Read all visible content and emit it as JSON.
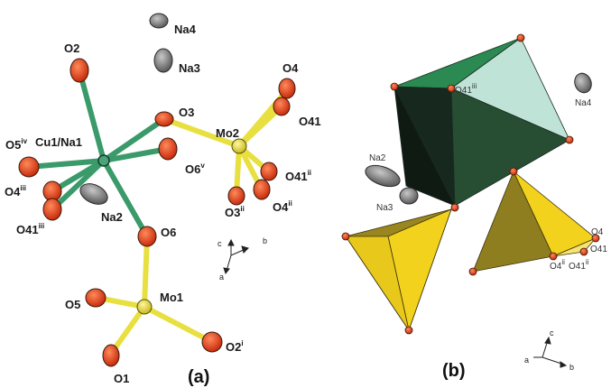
{
  "panel_a": {
    "label": "(a)",
    "atoms": {
      "o2": "O2",
      "na4": "Na4",
      "na3": "Na3",
      "o3": "O3",
      "mo2": "Mo2",
      "o4": "O4",
      "o41": "O41",
      "o5": "O5",
      "o5_sup": "iv",
      "cu1na1": "Cu1/Na1",
      "o6v": "O6",
      "o6v_sup": "v",
      "o4iii": "O4",
      "o4iii_sup": "iii",
      "o41iii": "O41",
      "o41iii_sup": "iii",
      "na2": "Na2",
      "o6": "O6",
      "o41ii": "O41",
      "o41ii_sup": "ii",
      "o4ii": "O4",
      "o4ii_sup": "ii",
      "o3ii": "O3",
      "o3ii_sup": "ii",
      "mo1": "Mo1",
      "o1": "O1",
      "o2i": "O2",
      "o2i_sup": "i"
    },
    "axes": {
      "c": "c",
      "b": "b",
      "a": "a"
    }
  },
  "panel_b": {
    "label": "(b)",
    "atoms": {
      "o41iii": "O41",
      "o41iii_sup": "iii",
      "na4": "Na4",
      "na2": "Na2",
      "na3": "Na3",
      "o4": "O4",
      "o41": "O41",
      "o4ii": "O4",
      "o4ii_sup": "ii",
      "o41ii": "O41",
      "o41ii_sup": "ii"
    },
    "axes": {
      "c": "c",
      "a": "a",
      "b": "b"
    }
  },
  "colors": {
    "oxygen": "#e8401c",
    "cu_bond": "#3a9a6a",
    "mo_bond": "#e8e040",
    "na": "#8a8a8a",
    "octahedron_dark": "#1f3d2a",
    "octahedron_green": "#2e8a52",
    "octahedron_light": "#bfe3d6",
    "tetra_yellow": "#f2d21c",
    "tetra_olive": "#8f7e1f"
  }
}
